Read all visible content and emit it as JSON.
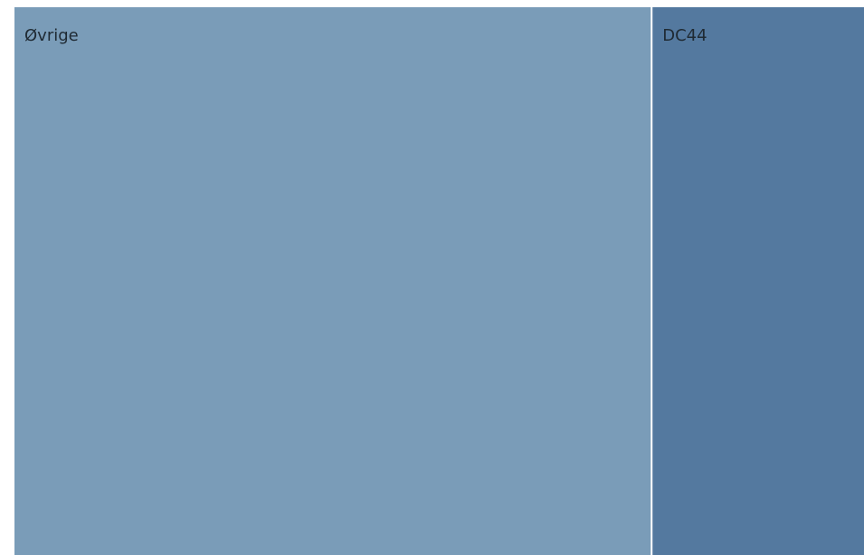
{
  "chart_data": {
    "type": "treemap",
    "categories": [
      "Øvrige",
      "DC44"
    ],
    "values": [
      75,
      25
    ],
    "colors": [
      "#7a9cb8",
      "#54799f"
    ]
  }
}
